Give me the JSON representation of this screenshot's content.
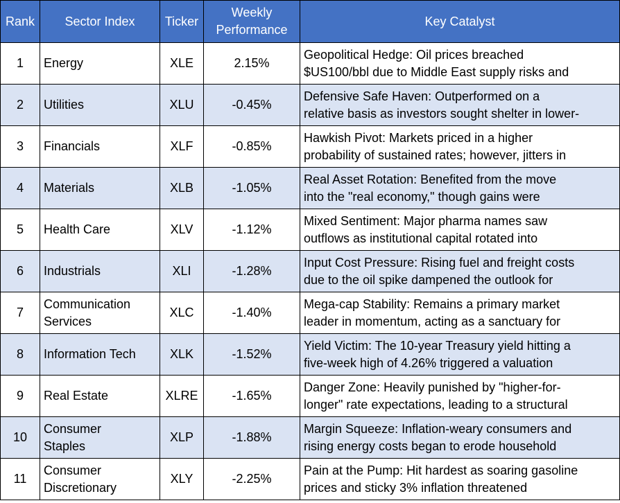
{
  "table": {
    "columns": [
      "Rank",
      "Sector Index",
      "Ticker",
      "Weekly\nPerformance",
      "Key Catalyst"
    ],
    "rows": [
      {
        "rank": "1",
        "sector": "Energy",
        "ticker": "XLE",
        "performance": "2.15%",
        "catalyst": "Geopolitical Hedge: Oil prices breached\n$US100/bbl due to Middle East supply risks and"
      },
      {
        "rank": "2",
        "sector": "Utilities",
        "ticker": "XLU",
        "performance": "-0.45%",
        "catalyst": "Defensive Safe Haven: Outperformed on a\nrelative basis as investors sought shelter in lower-"
      },
      {
        "rank": "3",
        "sector": "Financials",
        "ticker": "XLF",
        "performance": "-0.85%",
        "catalyst": "Hawkish Pivot: Markets priced in a higher\nprobability of sustained rates; however, jitters in"
      },
      {
        "rank": "4",
        "sector": "Materials",
        "ticker": "XLB",
        "performance": "-1.05%",
        "catalyst": "Real Asset Rotation: Benefited from the move\ninto the \"real economy,\" though gains were"
      },
      {
        "rank": "5",
        "sector": "Health Care",
        "ticker": "XLV",
        "performance": "-1.12%",
        "catalyst": "Mixed Sentiment: Major pharma names saw\noutflows as institutional capital rotated into"
      },
      {
        "rank": "6",
        "sector": "Industrials",
        "ticker": "XLI",
        "performance": "-1.28%",
        "catalyst": "Input Cost Pressure: Rising fuel and freight costs\ndue to the oil spike dampened the outlook for"
      },
      {
        "rank": "7",
        "sector": "Communication\nServices",
        "ticker": "XLC",
        "performance": "-1.40%",
        "catalyst": "Mega-cap Stability: Remains a primary market\nleader in momentum, acting as a sanctuary for"
      },
      {
        "rank": "8",
        "sector": "Information Tech",
        "ticker": "XLK",
        "performance": "-1.52%",
        "catalyst": "Yield Victim: The 10-year Treasury yield hitting a\nfive-week high of 4.26% triggered a valuation"
      },
      {
        "rank": "9",
        "sector": "Real Estate",
        "ticker": "XLRE",
        "performance": "-1.65%",
        "catalyst": "Danger Zone: Heavily punished by \"higher-for-\nlonger\" rate expectations, leading to a structural"
      },
      {
        "rank": "10",
        "sector": "Consumer\nStaples",
        "ticker": "XLP",
        "performance": "-1.88%",
        "catalyst": "Margin Squeeze: Inflation-weary consumers and\nrising energy costs began to erode household"
      },
      {
        "rank": "11",
        "sector": "Consumer\nDiscretionary",
        "ticker": "XLY",
        "performance": "-2.25%",
        "catalyst": "Pain at the Pump: Hit hardest as soaring gasoline\nprices and sticky 3% inflation threatened"
      }
    ]
  }
}
